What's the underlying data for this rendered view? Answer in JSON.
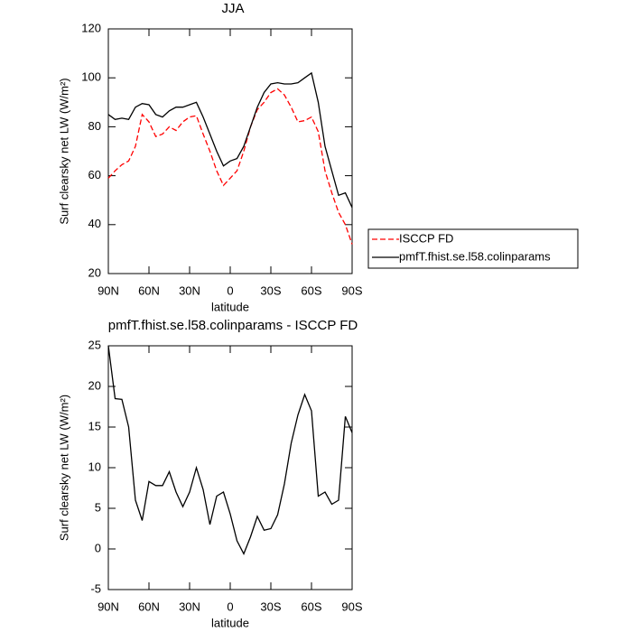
{
  "chart_data": [
    {
      "type": "line",
      "title": "JJA",
      "xlabel": "latitude",
      "ylabel": "Surf clearsky net LW (W/m²)",
      "x": [
        90,
        85,
        80,
        75,
        70,
        65,
        60,
        55,
        50,
        45,
        40,
        35,
        30,
        25,
        20,
        15,
        10,
        5,
        0,
        -5,
        -10,
        -15,
        -20,
        -25,
        -30,
        -35,
        -40,
        -45,
        -50,
        -55,
        -60,
        -65,
        -70,
        -75,
        -80,
        -85,
        -90
      ],
      "series": [
        {
          "name": "ISCCP FD",
          "color": "#ff0000",
          "line_style": "dashed",
          "values": [
            59,
            62,
            64.5,
            66,
            72,
            85,
            82,
            76,
            77,
            80,
            78.5,
            82,
            84,
            84.5,
            77,
            70,
            62,
            56,
            59,
            62,
            70,
            80,
            87,
            90,
            94,
            95.5,
            93,
            88,
            82,
            82.5,
            84,
            78,
            62,
            53,
            45,
            40,
            32
          ]
        },
        {
          "name": "pmfT.fhist.se.l58.colinparams",
          "color": "#000000",
          "line_style": "solid",
          "values": [
            85,
            83,
            83.5,
            83,
            88,
            89.5,
            89,
            85,
            84,
            86.5,
            88,
            88,
            89,
            90,
            84,
            77,
            70,
            64,
            66,
            67,
            72,
            80,
            88,
            94,
            97.5,
            98,
            97.5,
            97.5,
            98,
            100,
            102,
            90,
            72,
            62,
            52,
            53,
            47
          ]
        }
      ],
      "xlim": [
        90,
        -90
      ],
      "xticks": [
        {
          "value": 90,
          "label": "90N"
        },
        {
          "value": 60,
          "label": "60N"
        },
        {
          "value": 30,
          "label": "30N"
        },
        0,
        {
          "value": -30,
          "label": "30S"
        },
        {
          "value": -60,
          "label": "60S"
        },
        {
          "value": -90,
          "label": "90S"
        }
      ],
      "ylim": [
        20,
        120
      ],
      "yticks": [
        20,
        40,
        60,
        80,
        100,
        120
      ],
      "legend": "right"
    },
    {
      "type": "line",
      "title": "pmfT.fhist.se.l58.colinparams - ISCCP FD",
      "xlabel": "latitude",
      "ylabel": "Surf clearsky net LW (W/m²)",
      "x": [
        90,
        85,
        80,
        75,
        70,
        65,
        60,
        55,
        50,
        45,
        40,
        35,
        30,
        25,
        20,
        15,
        10,
        5,
        0,
        -5,
        -10,
        -15,
        -20,
        -25,
        -30,
        -35,
        -40,
        -45,
        -50,
        -55,
        -60,
        -65,
        -70,
        -75,
        -80,
        -85,
        -90
      ],
      "values": [
        25,
        18.5,
        18.4,
        15,
        6,
        3.5,
        8.3,
        7.8,
        7.8,
        9.5,
        7,
        5.2,
        7,
        10,
        7.3,
        3,
        6.5,
        7,
        4.3,
        1,
        -0.6,
        1.5,
        4,
        2.3,
        2.5,
        4.2,
        8,
        13,
        16.5,
        19,
        17,
        6.5,
        7,
        5.5,
        6,
        16.3,
        14.3
      ],
      "color": "#000000",
      "xlim": [
        90,
        -90
      ],
      "xticks": [
        {
          "value": 90,
          "label": "90N"
        },
        {
          "value": 60,
          "label": "60N"
        },
        {
          "value": 30,
          "label": "30N"
        },
        0,
        {
          "value": -30,
          "label": "30S"
        },
        {
          "value": -60,
          "label": "60S"
        },
        {
          "value": -90,
          "label": "90S"
        }
      ],
      "ylim": [
        -5,
        25
      ],
      "yticks": [
        -5,
        0,
        5,
        10,
        15,
        20,
        25
      ]
    }
  ]
}
